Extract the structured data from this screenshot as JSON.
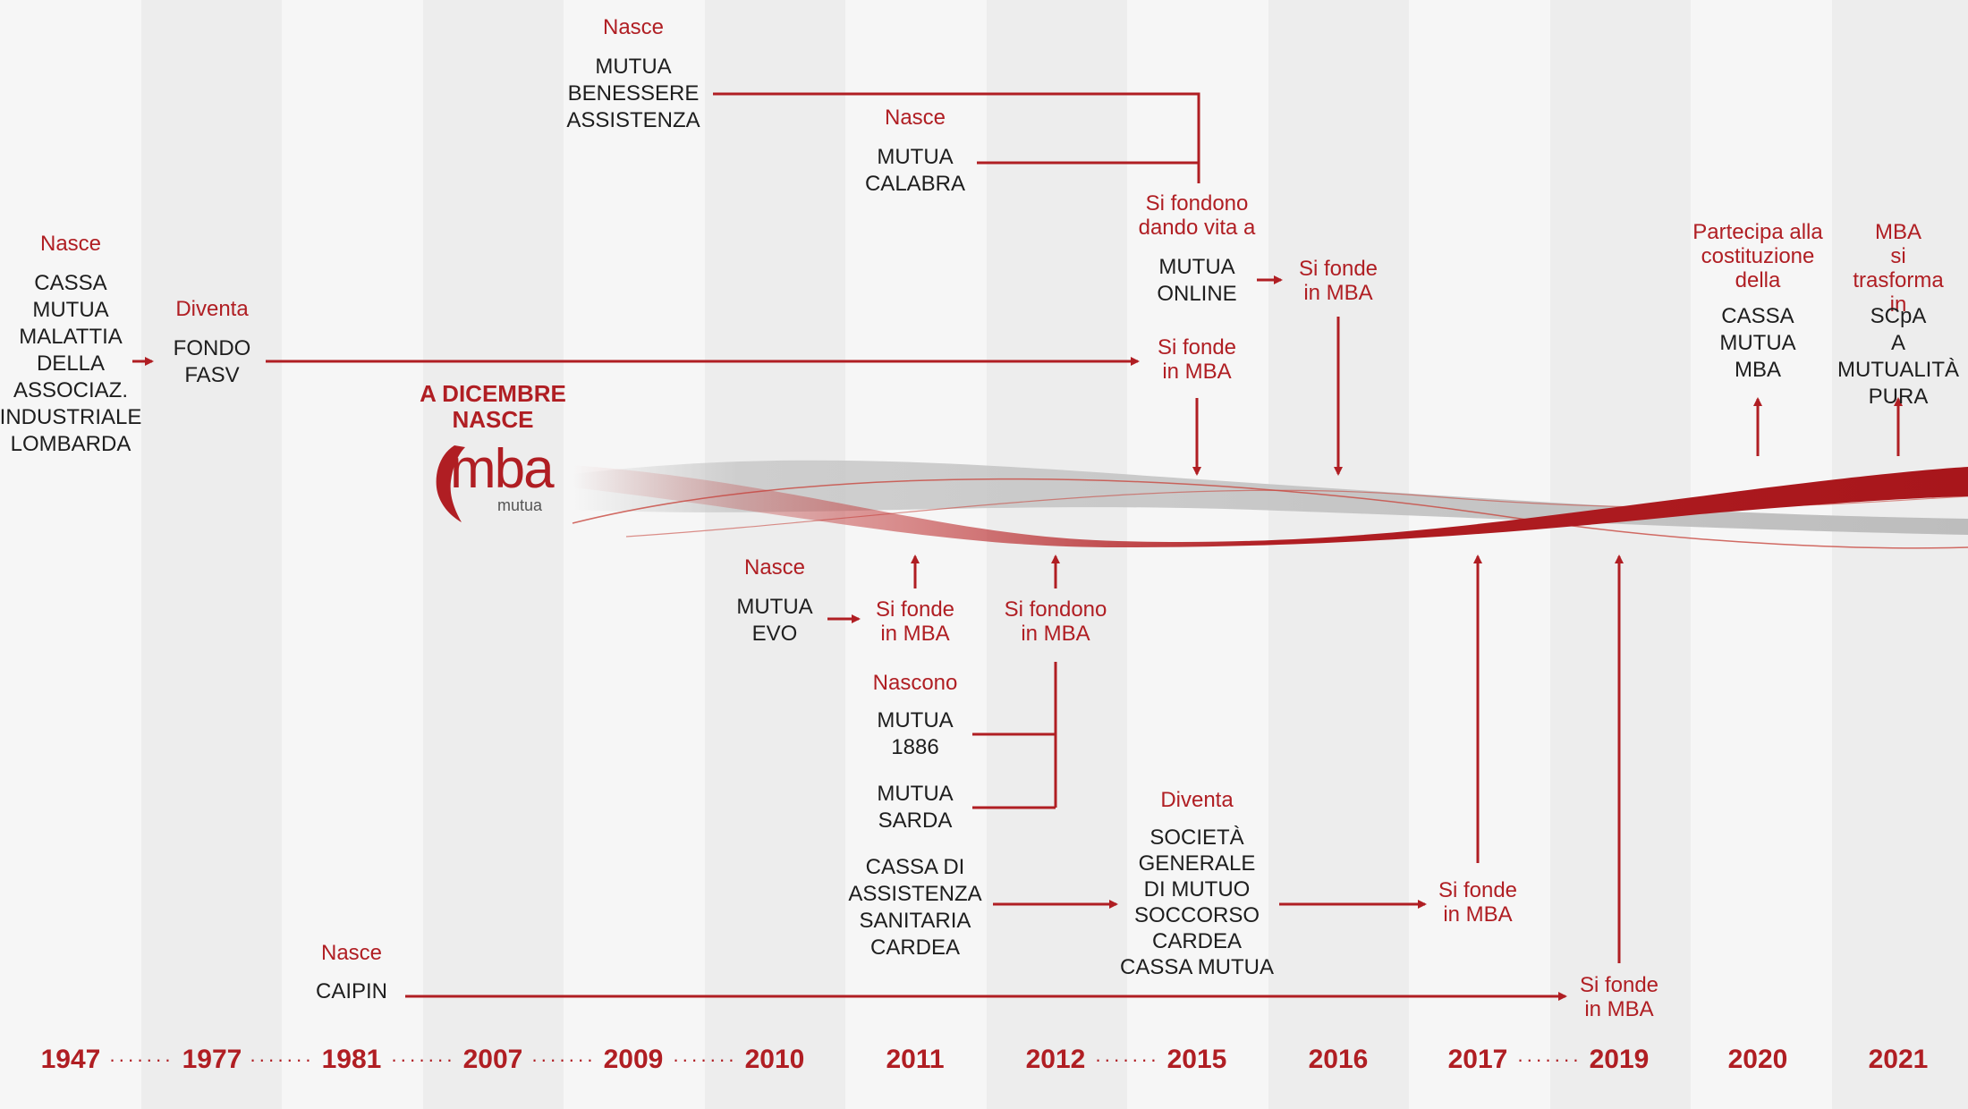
{
  "colors": {
    "accent": "#b01e23",
    "text": "#1e1e1e",
    "band_light": "#f6f6f6",
    "band_dark": "#ededed"
  },
  "years": [
    "1947",
    "1977",
    "1981",
    "2007",
    "2009",
    "2010",
    "2011",
    "2012",
    "2015",
    "2016",
    "2017",
    "2019",
    "2020",
    "2021"
  ],
  "dots": "·······",
  "logo": {
    "heading": "A DICEMBRE\nNASCE",
    "mark": "mba",
    "sub": "mutua",
    "icon": "mba-shield-logo"
  },
  "events": {
    "cassa_nasce": "Nasce",
    "cassa_name": "CASSA\nMUTUA\nMALATTIA\nDELLA\nASSOCIAZ.\nINDUSTRIALE\nLOMBARDA",
    "fasv_label": "Diventa",
    "fasv_name": "FONDO\nFASV",
    "fasv_merge": "Si fonde\nin MBA",
    "mba_ben_nasce": "Nasce",
    "mba_ben_name": "MUTUA\nBENESSERE\nASSISTENZA",
    "calabra_nasce": "Nasce",
    "calabra_name": "MUTUA\nCALABRA",
    "online_label": "Si fondono\ndando vita a",
    "online_name": "MUTUA\nONLINE",
    "online_merge": "Si fonde\nin MBA",
    "evo_nasce": "Nasce",
    "evo_name": "MUTUA\nEVO",
    "evo_merge": "Si fonde\nin MBA",
    "nascono": "Nascono",
    "m1886_name": "MUTUA\n1886",
    "sarda_name": "MUTUA\nSARDA",
    "fondono_merge": "Si fondono\nin MBA",
    "cardea_name": "CASSA DI\nASSISTENZA\nSANITARIA\nCARDEA",
    "sgms_label": "Diventa",
    "sgms_name": "SOCIETÀ\nGENERALE\nDI MUTUO\nSOCCORSO\nCARDEA\nCASSA MUTUA",
    "sgms_merge": "Si fonde\nin MBA",
    "caipin_nasce": "Nasce",
    "caipin_name": "CAIPIN",
    "caipin_merge": "Si fonde\nin MBA",
    "partecipa_label": "Partecipa alla\ncostituzione\ndella",
    "partecipa_name": "CASSA\nMUTUA\nMBA",
    "trasforma_label": "MBA\nsi trasforma\nin",
    "trasforma_name": "SCpA\nA MUTUALITÀ\nPURA"
  }
}
